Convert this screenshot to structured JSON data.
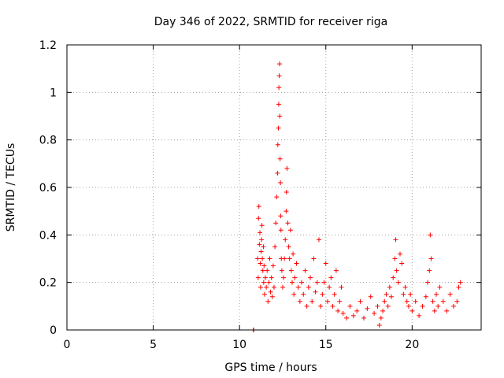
{
  "chart_data": {
    "type": "scatter",
    "title": "Day 346 of 2022, SRMTID for receiver riga",
    "xlabel": "GPS time / hours",
    "ylabel": "SRMTID / TECUs",
    "xlim": [
      0,
      24
    ],
    "ylim": [
      0,
      1.2
    ],
    "xticks": [
      0,
      5,
      10,
      15,
      20
    ],
    "yticks": [
      0,
      0.2,
      0.4,
      0.6,
      0.8,
      1,
      1.2
    ],
    "xtick_labels": [
      "0",
      "5",
      "10",
      "15",
      "20"
    ],
    "ytick_labels": [
      "0",
      "0.2",
      "0.4",
      "0.6",
      "0.8",
      "1",
      "1.2"
    ],
    "grid": true,
    "legend": "none",
    "series": [
      {
        "name": "SRMTID",
        "color": "#ff0000",
        "marker": "plus",
        "x": [
          10.8,
          10.82,
          11.05,
          11.08,
          11.1,
          11.12,
          11.15,
          11.18,
          11.2,
          11.22,
          11.25,
          11.28,
          11.3,
          11.32,
          11.35,
          11.38,
          11.4,
          11.42,
          11.45,
          11.5,
          11.55,
          11.6,
          11.65,
          11.7,
          11.75,
          11.8,
          11.85,
          11.9,
          11.95,
          12.0,
          12.05,
          12.1,
          12.15,
          12.2,
          12.22,
          12.25,
          12.27,
          12.28,
          12.3,
          12.32,
          12.33,
          12.35,
          12.37,
          12.38,
          12.4,
          12.42,
          12.45,
          12.5,
          12.55,
          12.6,
          12.65,
          12.7,
          12.72,
          12.75,
          12.8,
          12.85,
          12.9,
          12.95,
          13.0,
          13.05,
          13.1,
          13.15,
          13.2,
          13.3,
          13.4,
          13.5,
          13.6,
          13.7,
          13.8,
          13.9,
          14.0,
          14.1,
          14.2,
          14.3,
          14.4,
          14.5,
          14.6,
          14.7,
          14.8,
          14.9,
          15.0,
          15.1,
          15.2,
          15.3,
          15.4,
          15.5,
          15.6,
          15.7,
          15.8,
          15.9,
          16.0,
          16.2,
          16.4,
          16.6,
          16.8,
          17.0,
          17.2,
          17.4,
          17.6,
          17.8,
          18.0,
          18.1,
          18.2,
          18.3,
          18.4,
          18.5,
          18.6,
          18.7,
          18.8,
          18.9,
          19.0,
          19.05,
          19.1,
          19.2,
          19.3,
          19.4,
          19.5,
          19.6,
          19.7,
          19.8,
          19.9,
          20.0,
          20.2,
          20.4,
          20.6,
          20.8,
          20.9,
          21.0,
          21.05,
          21.1,
          21.2,
          21.3,
          21.4,
          21.5,
          21.6,
          21.8,
          22.0,
          22.2,
          22.4,
          22.6,
          22.7,
          22.8
        ],
        "y": [
          0.0,
          0.0,
          0.3,
          0.22,
          0.47,
          0.52,
          0.36,
          0.41,
          0.28,
          0.18,
          0.33,
          0.38,
          0.44,
          0.3,
          0.25,
          0.35,
          0.2,
          0.27,
          0.15,
          0.22,
          0.18,
          0.25,
          0.12,
          0.2,
          0.3,
          0.16,
          0.22,
          0.14,
          0.27,
          0.18,
          0.35,
          0.45,
          0.56,
          0.66,
          0.78,
          0.85,
          0.95,
          1.02,
          1.07,
          1.12,
          0.9,
          0.72,
          0.62,
          0.48,
          0.42,
          0.3,
          0.25,
          0.18,
          0.22,
          0.3,
          0.38,
          0.5,
          0.58,
          0.68,
          0.45,
          0.35,
          0.3,
          0.42,
          0.25,
          0.2,
          0.32,
          0.15,
          0.22,
          0.28,
          0.18,
          0.12,
          0.2,
          0.15,
          0.25,
          0.1,
          0.18,
          0.22,
          0.12,
          0.3,
          0.16,
          0.2,
          0.38,
          0.1,
          0.15,
          0.2,
          0.28,
          0.12,
          0.18,
          0.22,
          0.1,
          0.15,
          0.25,
          0.08,
          0.12,
          0.18,
          0.07,
          0.05,
          0.1,
          0.06,
          0.08,
          0.12,
          0.05,
          0.09,
          0.14,
          0.07,
          0.1,
          0.02,
          0.05,
          0.08,
          0.12,
          0.15,
          0.1,
          0.18,
          0.14,
          0.22,
          0.3,
          0.38,
          0.25,
          0.2,
          0.32,
          0.28,
          0.15,
          0.18,
          0.12,
          0.1,
          0.15,
          0.08,
          0.12,
          0.06,
          0.1,
          0.14,
          0.2,
          0.25,
          0.4,
          0.3,
          0.12,
          0.08,
          0.15,
          0.1,
          0.18,
          0.12,
          0.08,
          0.15,
          0.1,
          0.12,
          0.18,
          0.2
        ]
      }
    ]
  }
}
